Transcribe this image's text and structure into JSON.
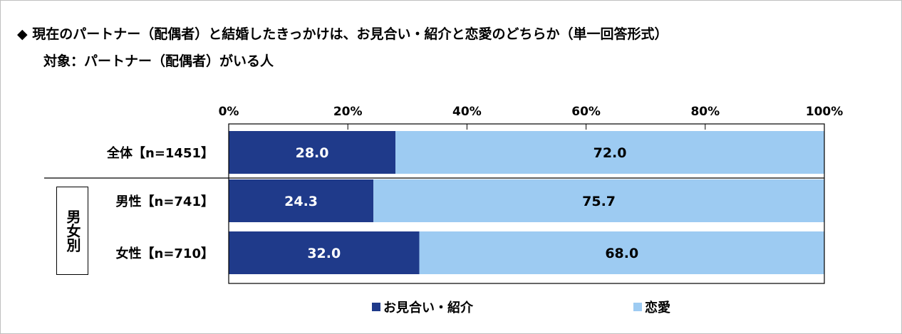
{
  "title": {
    "line1": "◆ 現在のパートナー（配偶者）と結婚したきっかけは、お見合い・紹介と恋愛のどちらか（単一回答形式）",
    "line2": "対象：パートナー（配偶者）がいる人"
  },
  "group_label": "男女別",
  "colors": {
    "series1": "#1f3a8a",
    "series2": "#9dcbf2",
    "grid": "#000000"
  },
  "chart_data": {
    "type": "bar",
    "orientation": "horizontal",
    "stacked": true,
    "percent_axis": true,
    "xlim": [
      0,
      100
    ],
    "xticks": [
      "0%",
      "20%",
      "40%",
      "60%",
      "80%",
      "100%"
    ],
    "categories": [
      "全体【n=1451】",
      "男性【n=741】",
      "女性【n=710】"
    ],
    "series": [
      {
        "name": "お見合い・紹介",
        "values": [
          28.0,
          24.3,
          32.0
        ]
      },
      {
        "name": "恋愛",
        "values": [
          72.0,
          75.7,
          68.0
        ]
      }
    ],
    "data_labels": [
      [
        "28.0",
        "24.3",
        "32.0"
      ],
      [
        "72.0",
        "75.7",
        "68.0"
      ]
    ],
    "legend_position": "bottom",
    "grid": false
  }
}
